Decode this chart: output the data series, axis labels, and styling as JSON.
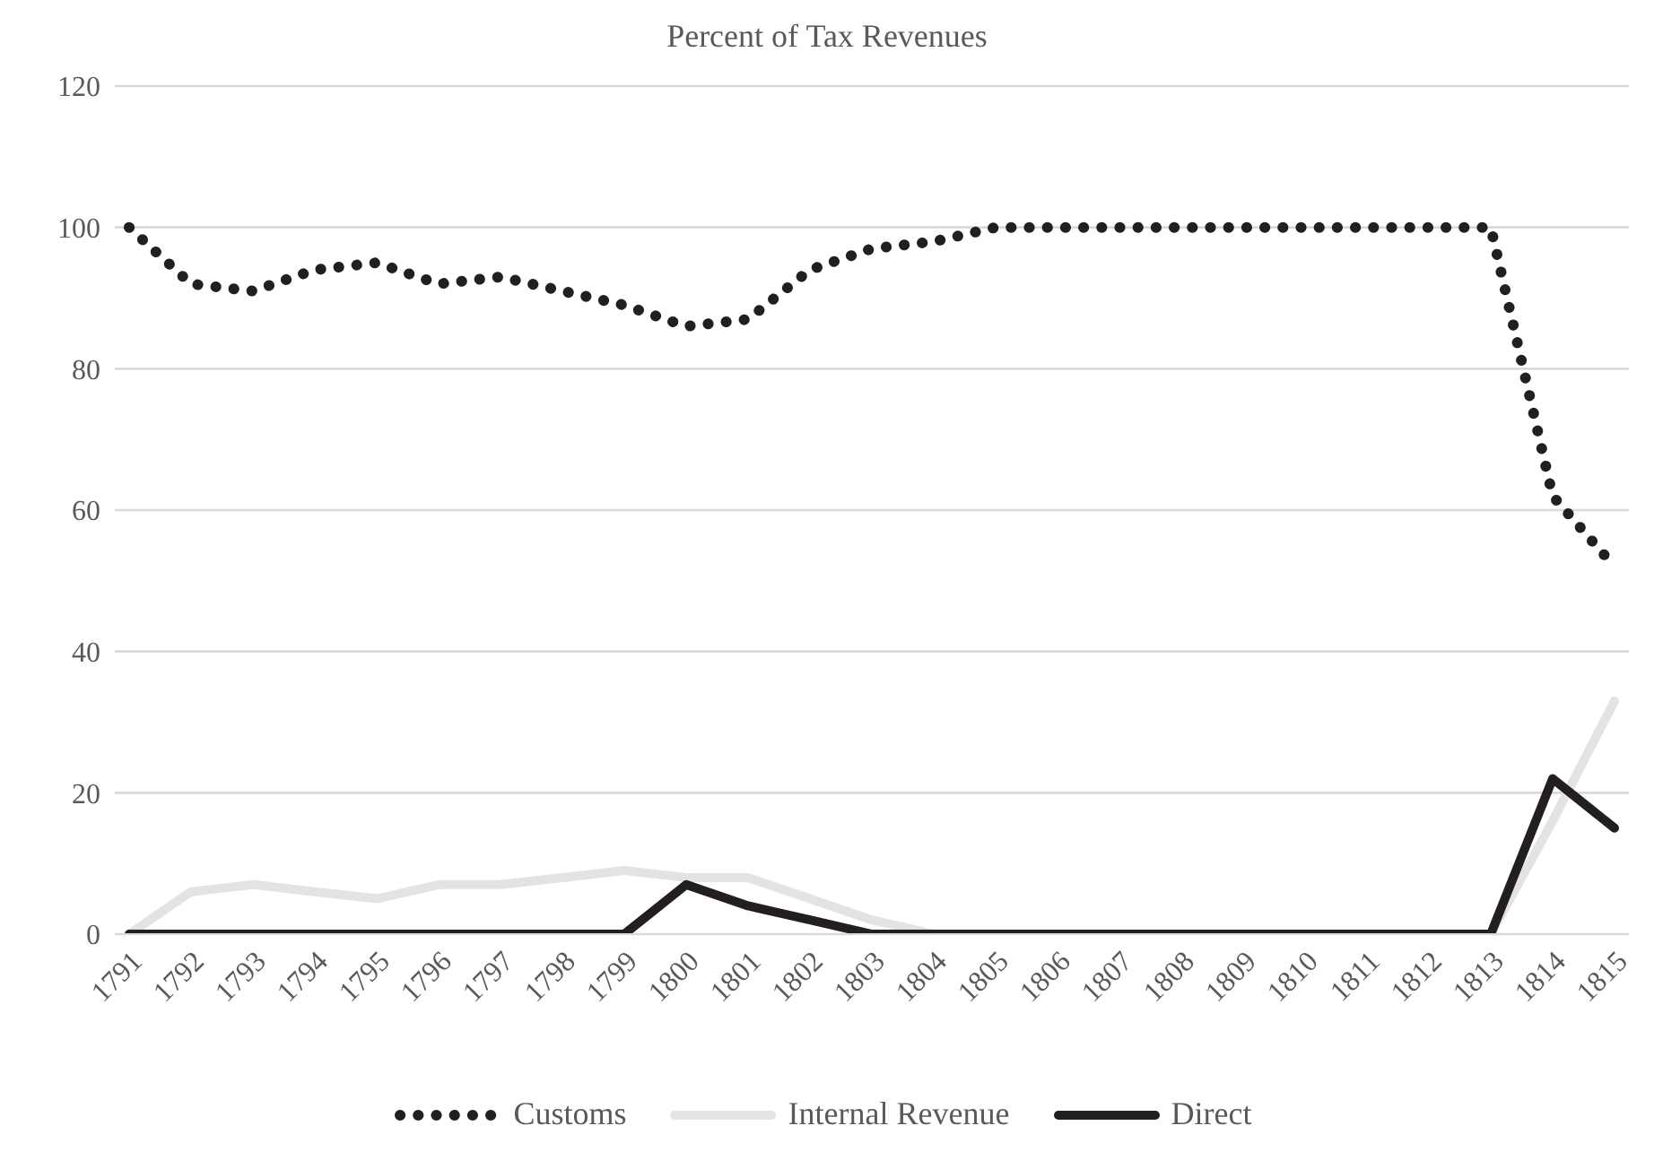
{
  "chart_data": {
    "type": "line",
    "title": "Percent of Tax Revenues",
    "categories": [
      "1791",
      "1792",
      "1793",
      "1794",
      "1795",
      "1796",
      "1797",
      "1798",
      "1799",
      "1800",
      "1801",
      "1802",
      "1803",
      "1804",
      "1805",
      "1806",
      "1807",
      "1808",
      "1809",
      "1810",
      "1811",
      "1812",
      "1813",
      "1814",
      "1815"
    ],
    "series": [
      {
        "name": "Customs",
        "color": "#231f20",
        "line_style": "dotted",
        "values": [
          100,
          92,
          91,
          94,
          95,
          92,
          93,
          91,
          89,
          86,
          87,
          94,
          97,
          98,
          100,
          100,
          100,
          100,
          100,
          100,
          100,
          100,
          100,
          62,
          52
        ]
      },
      {
        "name": "Internal Revenue",
        "color": "#e3e3e3",
        "line_style": "solid",
        "values": [
          0,
          6,
          7,
          6,
          5,
          7,
          7,
          8,
          9,
          8,
          8,
          5,
          2,
          0,
          0,
          0,
          0,
          0,
          0,
          0,
          0,
          0,
          0,
          16,
          33
        ]
      },
      {
        "name": "Direct",
        "color": "#231f20",
        "line_style": "solid",
        "values": [
          0,
          0,
          0,
          0,
          0,
          0,
          0,
          0,
          0,
          7,
          4,
          2,
          0,
          0,
          0,
          0,
          0,
          0,
          0,
          0,
          0,
          0,
          0,
          22,
          15
        ]
      }
    ],
    "ylim": [
      0,
      120
    ],
    "yticks": [
      0,
      20,
      40,
      60,
      80,
      100,
      120
    ],
    "grid": "y",
    "legend": "bottom",
    "marker": "none"
  }
}
